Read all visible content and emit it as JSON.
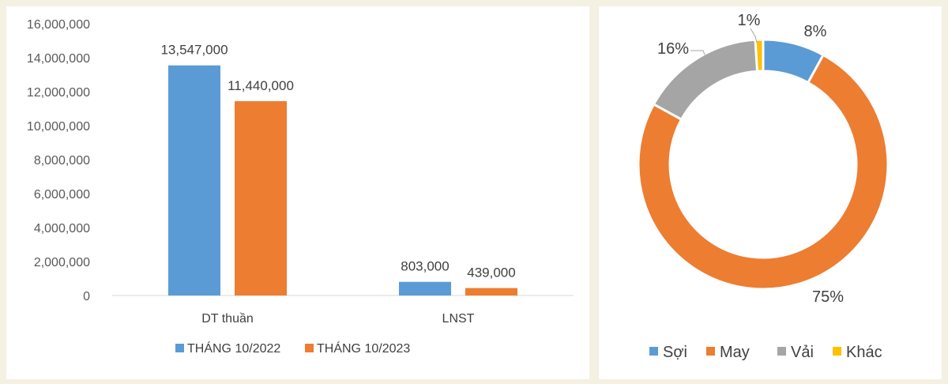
{
  "chart_data": [
    {
      "type": "bar",
      "categories": [
        "DT thuần",
        "LNST"
      ],
      "series": [
        {
          "name": "THÁNG 10/2022",
          "color": "#5b9bd5",
          "values": [
            13547000,
            803000
          ],
          "labels": [
            "13,547,000",
            "803,000"
          ]
        },
        {
          "name": "THÁNG 10/2023",
          "color": "#ed7d31",
          "values": [
            11440000,
            439000
          ],
          "labels": [
            "11,440,000",
            "439,000"
          ]
        }
      ],
      "ylim": [
        0,
        16000000
      ],
      "yticks": [
        0,
        2000000,
        4000000,
        6000000,
        8000000,
        10000000,
        12000000,
        14000000,
        16000000
      ],
      "ytick_labels": [
        "0",
        "2,000,000",
        "4,000,000",
        "6,000,000",
        "8,000,000",
        "10,000,000",
        "12,000,000",
        "14,000,000",
        "16,000,000"
      ],
      "legend_position": "bottom",
      "grid": false
    },
    {
      "type": "pie",
      "style": "doughnut",
      "slices": [
        {
          "name": "Sợi",
          "value": 8,
          "label": "8%",
          "color": "#5b9bd5"
        },
        {
          "name": "May",
          "value": 75,
          "label": "75%",
          "color": "#ed7d31"
        },
        {
          "name": "Vải",
          "value": 16,
          "label": "16%",
          "color": "#a5a5a5"
        },
        {
          "name": "Khác",
          "value": 1,
          "label": "1%",
          "color": "#ffc000"
        }
      ],
      "legend_position": "bottom"
    }
  ]
}
